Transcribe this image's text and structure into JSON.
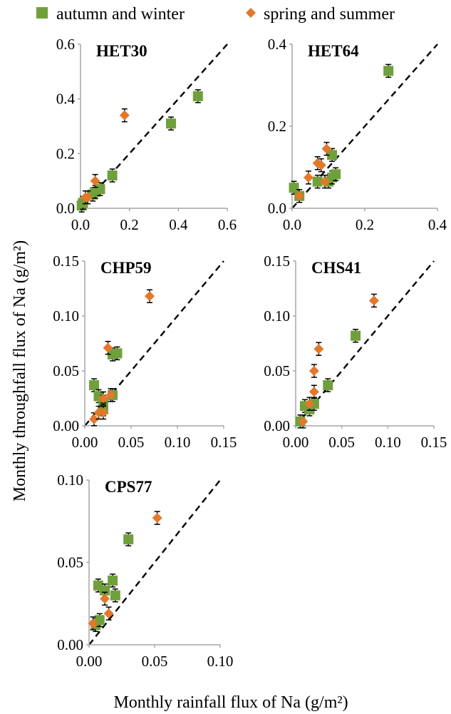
{
  "legend": {
    "autumn_label": "autumn and winter",
    "spring_label": "spring and summer"
  },
  "colors": {
    "autumn": "#70a03c",
    "spring": "#e3782a",
    "axis": "#a6a6a6",
    "diagonal": "#000000"
  },
  "xlabel": "Monthly rainfall flux of Na (g/m²)",
  "ylabel": "Monthly throughfall flux of Na (g/m²)",
  "chart_data": [
    {
      "type": "scatter",
      "title": "HET30",
      "xlim": [
        0,
        0.6
      ],
      "ylim": [
        0,
        0.6
      ],
      "xticks": [
        "0.0",
        "0.2",
        "0.4",
        "0.6"
      ],
      "yticks": [
        "0.0",
        "0.2",
        "0.4",
        "0.6"
      ],
      "grid": false,
      "diagonal": "1:1 dashed line",
      "series": [
        {
          "name": "autumn and winter",
          "marker": "square",
          "points": [
            [
              0.005,
              0.01
            ],
            [
              0.01,
              0.02
            ],
            [
              0.05,
              0.05
            ],
            [
              0.06,
              0.06
            ],
            [
              0.08,
              0.07
            ],
            [
              0.13,
              0.12
            ],
            [
              0.37,
              0.31
            ],
            [
              0.48,
              0.41
            ]
          ]
        },
        {
          "name": "spring and summer",
          "marker": "diamond",
          "points": [
            [
              0.02,
              0.04
            ],
            [
              0.03,
              0.04
            ],
            [
              0.06,
              0.1
            ],
            [
              0.18,
              0.34
            ]
          ]
        }
      ]
    },
    {
      "type": "scatter",
      "title": "HET64",
      "xlim": [
        0,
        0.4
      ],
      "ylim": [
        0,
        0.4
      ],
      "xticks": [
        "0.0",
        "0.2",
        "0.4"
      ],
      "yticks": [
        "0.0",
        "0.2",
        "0.4"
      ],
      "grid": false,
      "diagonal": "1:1 dashed line",
      "series": [
        {
          "name": "autumn and winter",
          "marker": "square",
          "points": [
            [
              0.005,
              0.05
            ],
            [
              0.02,
              0.03
            ],
            [
              0.07,
              0.065
            ],
            [
              0.1,
              0.065
            ],
            [
              0.11,
              0.075
            ],
            [
              0.12,
              0.083
            ],
            [
              0.11,
              0.13
            ],
            [
              0.265,
              0.335
            ]
          ]
        },
        {
          "name": "spring and summer",
          "marker": "diamond",
          "points": [
            [
              0.02,
              0.03
            ],
            [
              0.045,
              0.075
            ],
            [
              0.07,
              0.11
            ],
            [
              0.08,
              0.105
            ],
            [
              0.095,
              0.145
            ],
            [
              0.09,
              0.065
            ]
          ]
        }
      ]
    },
    {
      "type": "scatter",
      "title": "CHP59",
      "xlim": [
        0,
        0.15
      ],
      "ylim": [
        0,
        0.15
      ],
      "xticks": [
        "0.00",
        "0.05",
        "0.10",
        "0.15"
      ],
      "yticks": [
        "0.00",
        "0.05",
        "0.10",
        "0.15"
      ],
      "grid": false,
      "diagonal": "1:1 dashed line",
      "series": [
        {
          "name": "autumn and winter",
          "marker": "square",
          "points": [
            [
              0.01,
              0.037
            ],
            [
              0.015,
              0.027
            ],
            [
              0.02,
              0.022
            ],
            [
              0.02,
              0.015
            ],
            [
              0.03,
              0.065
            ],
            [
              0.035,
              0.066
            ],
            [
              0.03,
              0.028
            ]
          ]
        },
        {
          "name": "spring and summer",
          "marker": "diamond",
          "points": [
            [
              0.01,
              0.006
            ],
            [
              0.015,
              0.012
            ],
            [
              0.02,
              0.012
            ],
            [
              0.02,
              0.025
            ],
            [
              0.025,
              0.071
            ],
            [
              0.028,
              0.028
            ],
            [
              0.07,
              0.118
            ]
          ]
        }
      ]
    },
    {
      "type": "scatter",
      "title": "CHS41",
      "xlim": [
        0,
        0.15
      ],
      "ylim": [
        0,
        0.15
      ],
      "xticks": [
        "0.00",
        "0.05",
        "0.10",
        "0.15"
      ],
      "yticks": [
        "0.00",
        "0.05",
        "0.10",
        "0.15"
      ],
      "grid": false,
      "diagonal": "1:1 dashed line",
      "series": [
        {
          "name": "autumn and winter",
          "marker": "square",
          "points": [
            [
              0.005,
              0.004
            ],
            [
              0.01,
              0.018
            ],
            [
              0.015,
              0.015
            ],
            [
              0.02,
              0.02
            ],
            [
              0.035,
              0.037
            ],
            [
              0.065,
              0.082
            ]
          ]
        },
        {
          "name": "spring and summer",
          "marker": "diamond",
          "points": [
            [
              0.008,
              0.004
            ],
            [
              0.015,
              0.02
            ],
            [
              0.02,
              0.031
            ],
            [
              0.02,
              0.05
            ],
            [
              0.025,
              0.07
            ],
            [
              0.085,
              0.114
            ]
          ]
        }
      ]
    },
    {
      "type": "scatter",
      "title": "CPS77",
      "xlim": [
        0,
        0.1
      ],
      "ylim": [
        0,
        0.1
      ],
      "xticks": [
        "0.00",
        "0.05",
        "0.10"
      ],
      "yticks": [
        "0.00",
        "0.05",
        "0.10"
      ],
      "grid": false,
      "diagonal": "1:1 dashed line",
      "series": [
        {
          "name": "autumn and winter",
          "marker": "square",
          "points": [
            [
              0.005,
              0.012
            ],
            [
              0.007,
              0.036
            ],
            [
              0.008,
              0.015
            ],
            [
              0.012,
              0.033
            ],
            [
              0.018,
              0.039
            ],
            [
              0.02,
              0.03
            ],
            [
              0.03,
              0.064
            ]
          ]
        },
        {
          "name": "spring and summer",
          "marker": "diamond",
          "points": [
            [
              0.003,
              0.013
            ],
            [
              0.012,
              0.028
            ],
            [
              0.015,
              0.019
            ],
            [
              0.052,
              0.077
            ]
          ]
        }
      ]
    }
  ]
}
